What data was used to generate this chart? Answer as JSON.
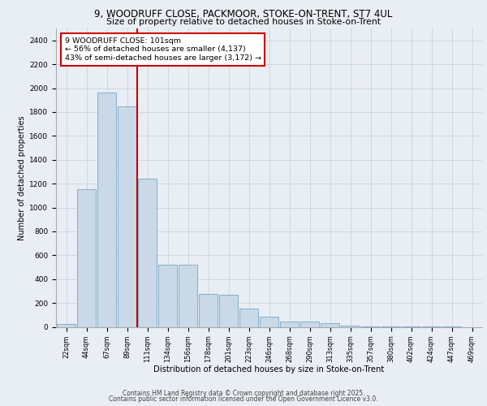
{
  "title_line1": "9, WOODRUFF CLOSE, PACKMOOR, STOKE-ON-TRENT, ST7 4UL",
  "title_line2": "Size of property relative to detached houses in Stoke-on-Trent",
  "xlabel": "Distribution of detached houses by size in Stoke-on-Trent",
  "ylabel": "Number of detached properties",
  "categories": [
    "22sqm",
    "44sqm",
    "67sqm",
    "89sqm",
    "111sqm",
    "134sqm",
    "156sqm",
    "178sqm",
    "201sqm",
    "223sqm",
    "246sqm",
    "268sqm",
    "290sqm",
    "313sqm",
    "335sqm",
    "357sqm",
    "380sqm",
    "402sqm",
    "424sqm",
    "447sqm",
    "469sqm"
  ],
  "values": [
    25,
    1155,
    1960,
    1850,
    1240,
    520,
    520,
    275,
    270,
    155,
    85,
    45,
    45,
    30,
    8,
    5,
    3,
    2,
    1,
    1,
    0
  ],
  "bar_color": "#c9d9e8",
  "bar_edge_color": "#6699bb",
  "red_line_index": 3,
  "annotation_text": "9 WOODRUFF CLOSE: 101sqm\n← 56% of detached houses are smaller (4,137)\n43% of semi-detached houses are larger (3,172) →",
  "annotation_box_color": "#ffffff",
  "annotation_box_edge": "#cc0000",
  "red_line_color": "#cc0000",
  "ylim": [
    0,
    2500
  ],
  "yticks": [
    0,
    200,
    400,
    600,
    800,
    1000,
    1200,
    1400,
    1600,
    1800,
    2000,
    2200,
    2400
  ],
  "grid_color": "#c8d4df",
  "footer_line1": "Contains HM Land Registry data © Crown copyright and database right 2025.",
  "footer_line2": "Contains public sector information licensed under the Open Government Licence v3.0.",
  "bg_color": "#e8eef4",
  "plot_bg_color": "#e8eef4"
}
